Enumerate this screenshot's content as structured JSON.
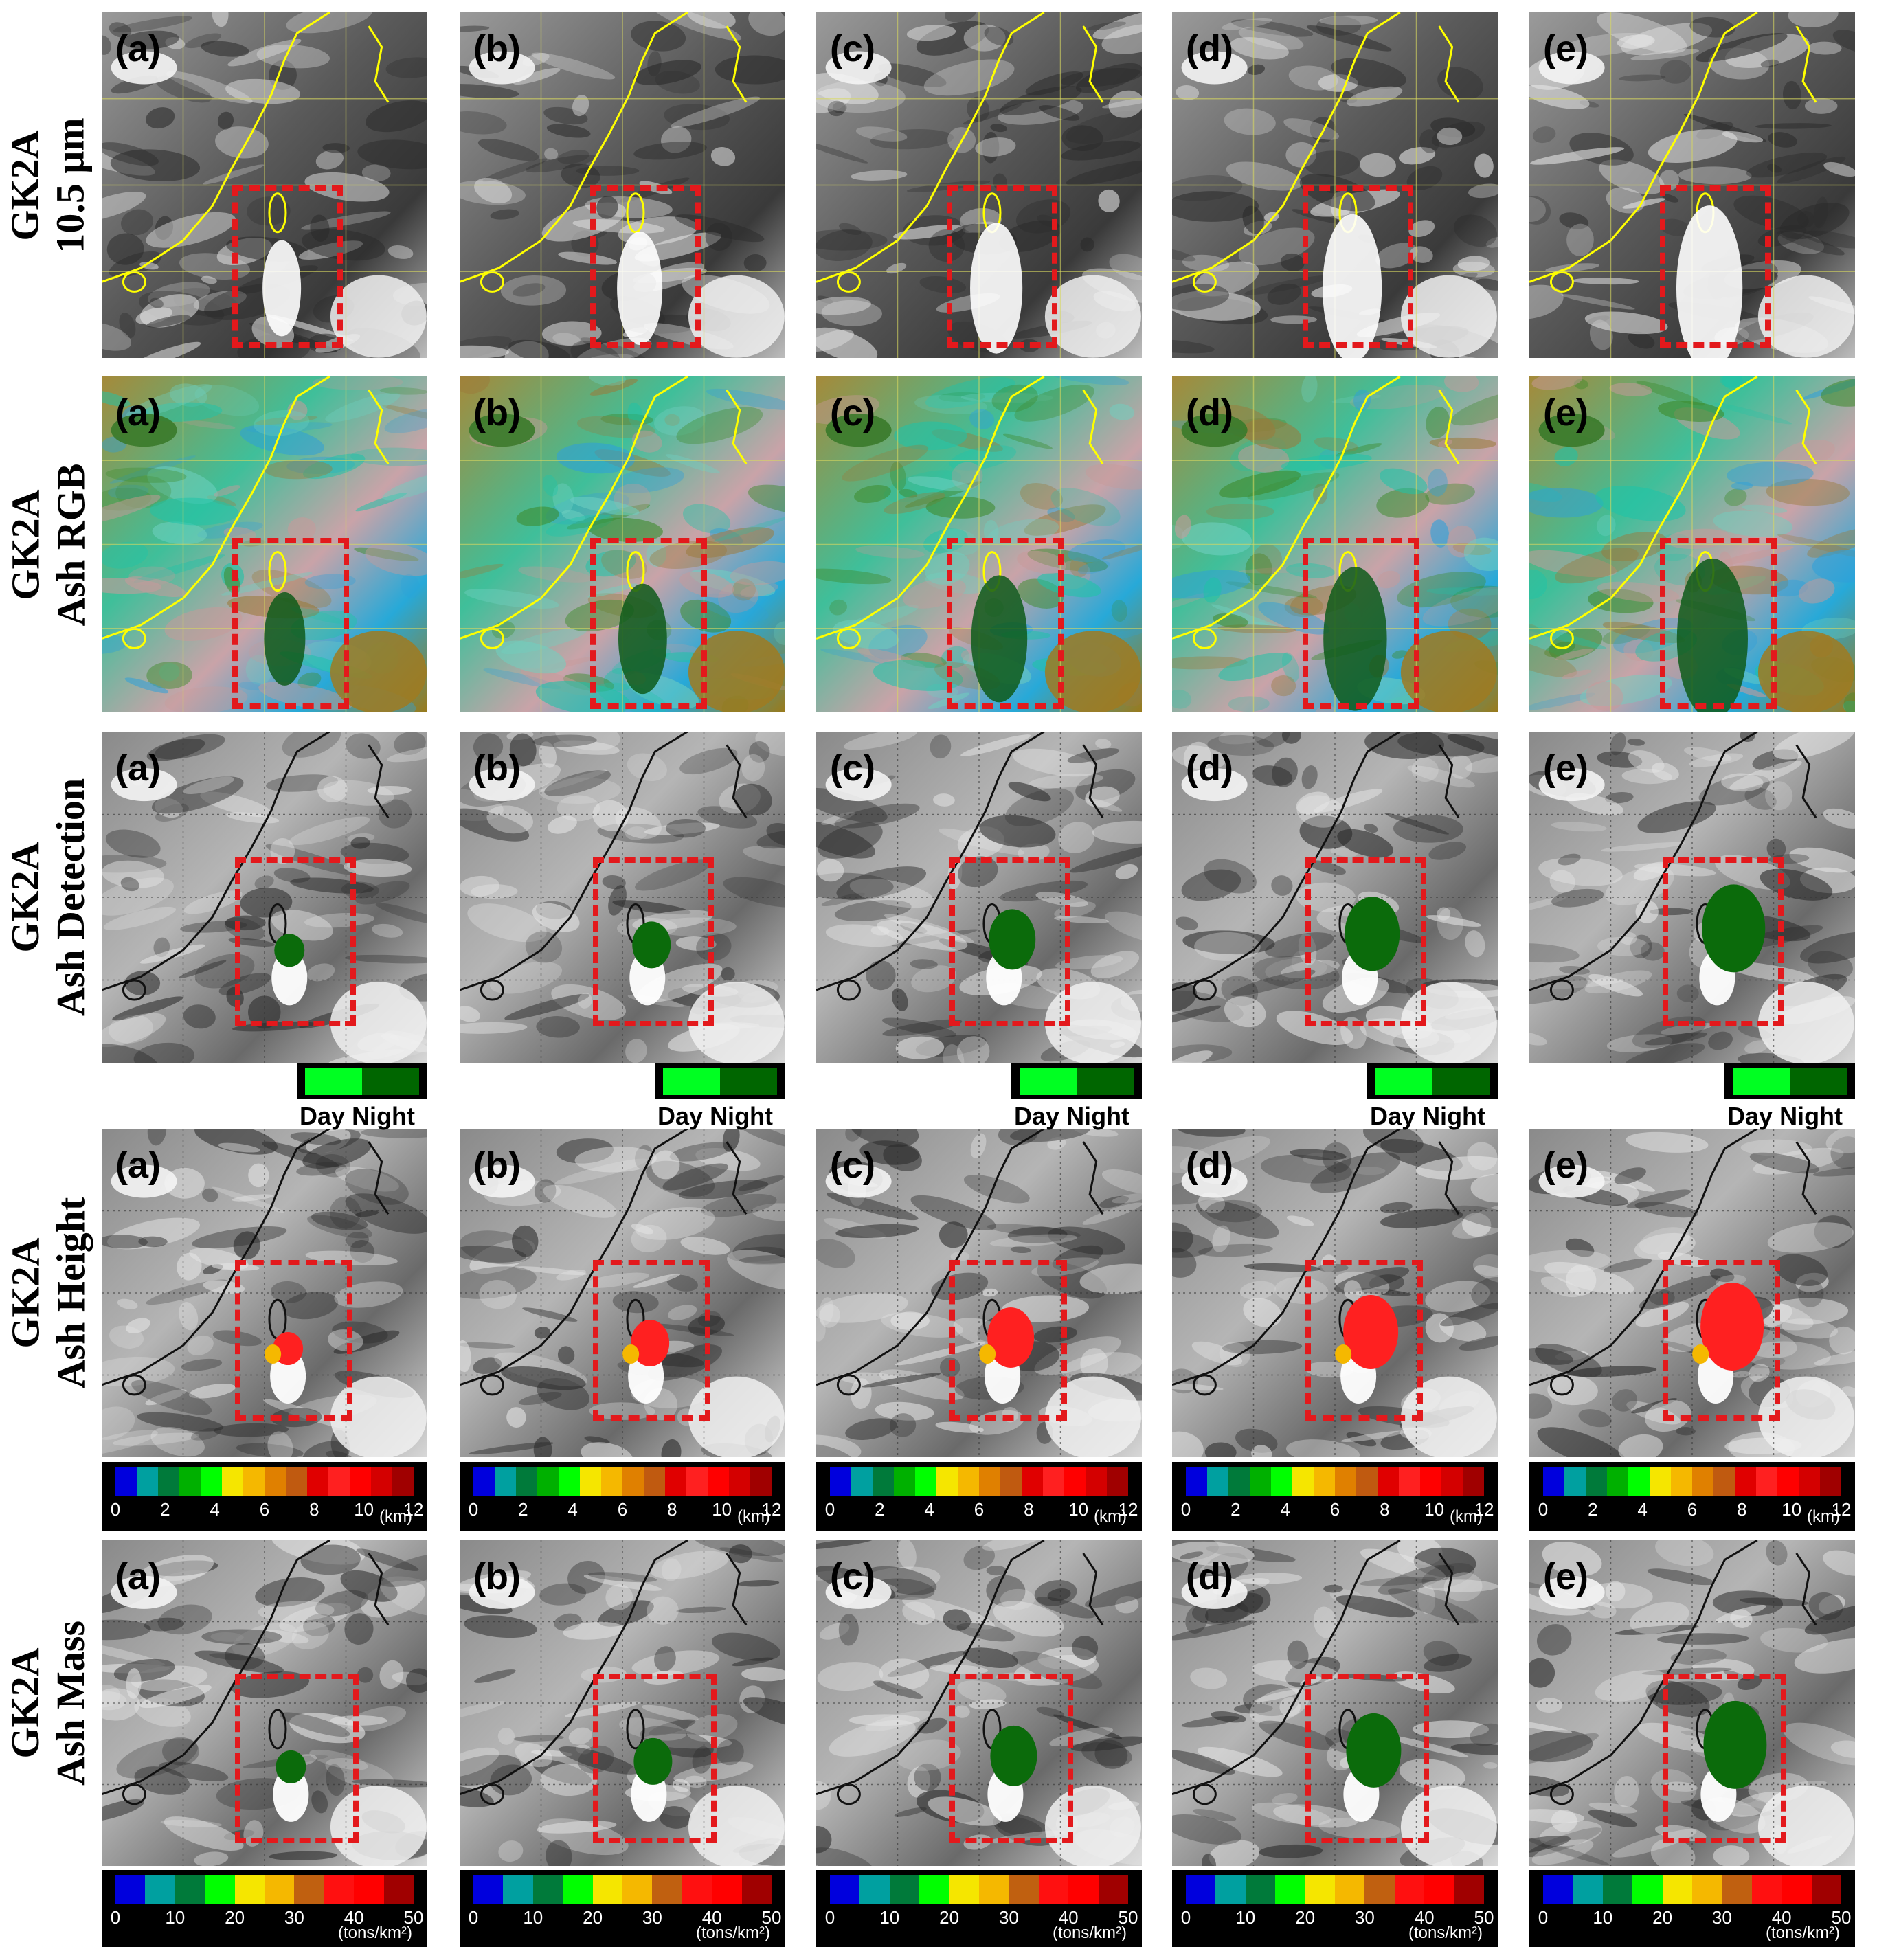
{
  "rows": [
    {
      "id": "ir105",
      "label_line1": "GK2A",
      "label_line2": "10.5 μm",
      "style": "ir"
    },
    {
      "id": "ashrgb",
      "label_line1": "GK2A",
      "label_line2": "Ash RGB",
      "style": "rgb"
    },
    {
      "id": "detection",
      "label_line1": "GK2A",
      "label_line2": "Ash Detection",
      "style": "gray",
      "overlay": "detect"
    },
    {
      "id": "height",
      "label_line1": "GK2A",
      "label_line2": "Ash Height",
      "style": "gray",
      "overlay": "height"
    },
    {
      "id": "mass",
      "label_line1": "GK2A",
      "label_line2": "Ash Mass",
      "style": "gray",
      "overlay": "mass"
    }
  ],
  "panel_letters": [
    "(a)",
    "(b)",
    "(c)",
    "(d)",
    "(e)"
  ],
  "detection_legend": {
    "day_label": "Day",
    "night_label": "Night",
    "day_color": "#00ff22",
    "night_color": "#006600"
  },
  "height_scale": {
    "ticks": [
      "0",
      "2",
      "4",
      "6",
      "8",
      "10",
      "12"
    ],
    "unit": "(km)",
    "colors": [
      "#0000dd",
      "#00a0a0",
      "#007a3a",
      "#00b000",
      "#00ff00",
      "#f5e600",
      "#f5b800",
      "#e08000",
      "#c05a10",
      "#e00000",
      "#ff2020",
      "#ff0000",
      "#d40000",
      "#a00000"
    ]
  },
  "mass_scale": {
    "ticks": [
      "0",
      "10",
      "20",
      "30",
      "40",
      "50"
    ],
    "unit": "(tons/km²)",
    "colors": [
      "#0000dd",
      "#00a0a0",
      "#007a3a",
      "#00ff00",
      "#f5e600",
      "#f5b800",
      "#c06010",
      "#ff1010",
      "#ff0000",
      "#a00000"
    ]
  },
  "colors": {
    "roi_box": "#e3191c",
    "coastline_ir": "#ffff00",
    "ash_detect": "#0b6b0b",
    "ash_height": "#ff2020"
  }
}
